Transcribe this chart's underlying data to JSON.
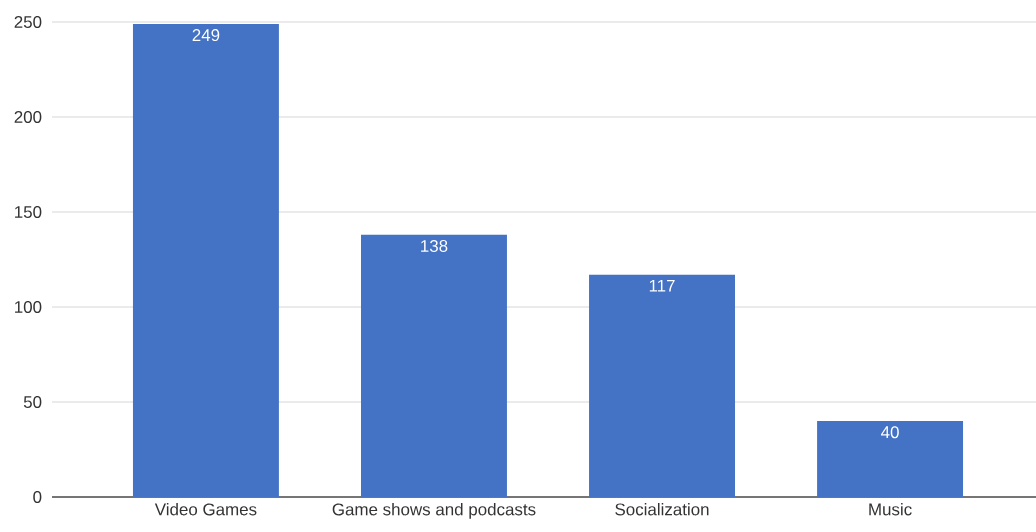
{
  "chart_data": {
    "type": "bar",
    "categories": [
      "Video Games",
      "Game shows and podcasts",
      "Socialization",
      "Music"
    ],
    "values": [
      249,
      138,
      117,
      40
    ],
    "color": "#4472c4",
    "ylim": [
      0,
      250
    ],
    "yticks": [
      0,
      50,
      100,
      150,
      200,
      250
    ],
    "grid": "y",
    "data_labels": true
  }
}
